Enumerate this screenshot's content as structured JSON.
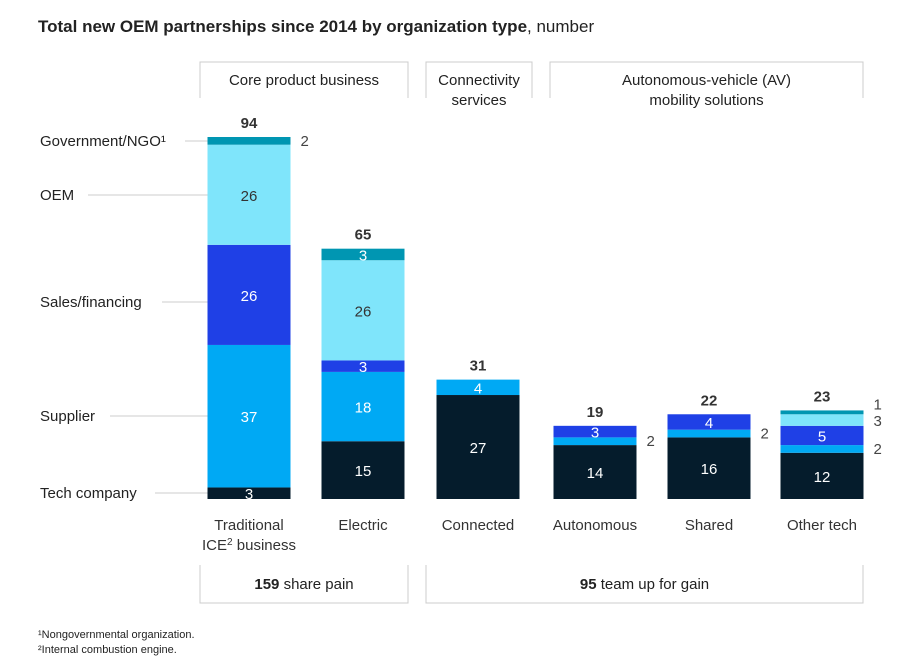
{
  "chart_data": {
    "type": "bar",
    "stacked": true,
    "title": "Total new OEM partnerships since 2014 by organization type",
    "subtitle": ", number",
    "categories": [
      "Traditional ICE² business",
      "Electric",
      "Connected",
      "Autonomous",
      "Shared",
      "Other tech"
    ],
    "category_lines": [
      [
        "Traditional",
        "ICE² business"
      ],
      [
        "Electric"
      ],
      [
        "Connected"
      ],
      [
        "Autonomous"
      ],
      [
        "Shared"
      ],
      [
        "Other tech"
      ]
    ],
    "totals": [
      94,
      65,
      31,
      19,
      22,
      23
    ],
    "series": [
      {
        "name": "Tech company",
        "values": [
          3,
          15,
          27,
          14,
          16,
          12
        ],
        "color": "#051c2c"
      },
      {
        "name": "Supplier",
        "values": [
          37,
          18,
          4,
          2,
          2,
          2
        ],
        "color": "#00a9f4"
      },
      {
        "name": "Sales/financing",
        "values": [
          26,
          3,
          0,
          3,
          4,
          5
        ],
        "color": "#1f40e6"
      },
      {
        "name": "OEM",
        "values": [
          26,
          26,
          0,
          0,
          0,
          3
        ],
        "color": "#7fe5fb"
      },
      {
        "name": "Government/NGO¹",
        "values": [
          2,
          3,
          0,
          0,
          0,
          1
        ],
        "color": "#0096b2"
      }
    ],
    "ylim": [
      0,
      94
    ],
    "grid": false,
    "groups": [
      {
        "label_lines": [
          "Core product business"
        ]
      },
      {
        "label_lines": [
          "Connectivity",
          "services"
        ]
      },
      {
        "label_lines": [
          "Autonomous-vehicle (AV)",
          "mobility solutions"
        ]
      }
    ],
    "summaries": [
      {
        "number": "159",
        "text": " share pain"
      },
      {
        "number": "95",
        "text": " team up for gain"
      }
    ],
    "footnotes": [
      "¹Nongovernmental organization.",
      "²Internal combustion engine."
    ]
  }
}
